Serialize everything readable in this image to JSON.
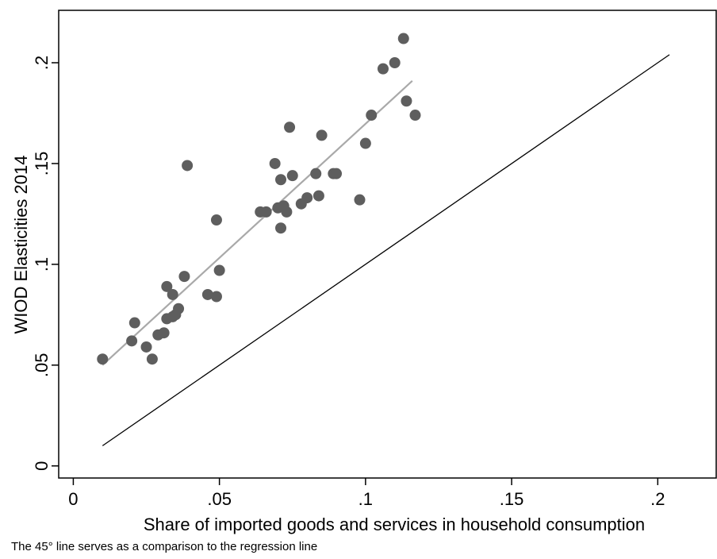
{
  "chart_data": {
    "type": "scatter",
    "xlabel": "Share of imported goods and services in household consumption",
    "ylabel": "WIOD Elasticities 2014",
    "xlim": [
      -0.005,
      0.22
    ],
    "ylim": [
      -0.006,
      0.226
    ],
    "x_ticks": [
      0,
      0.05,
      0.1,
      0.15,
      0.2
    ],
    "x_tick_labels": [
      "0",
      ".05",
      ".1",
      ".15",
      ".2"
    ],
    "y_ticks": [
      0,
      0.05,
      0.1,
      0.15,
      0.2
    ],
    "y_tick_labels": [
      "0",
      ".05",
      ".1",
      ".15",
      ".2"
    ],
    "grid": false,
    "colors": {
      "points": "#5e5e5e",
      "fit_line": "#a9a9a9",
      "ref_line": "#000000"
    },
    "points": [
      [
        0.01,
        0.053
      ],
      [
        0.02,
        0.062
      ],
      [
        0.021,
        0.071
      ],
      [
        0.025,
        0.059
      ],
      [
        0.027,
        0.053
      ],
      [
        0.029,
        0.065
      ],
      [
        0.031,
        0.066
      ],
      [
        0.032,
        0.073
      ],
      [
        0.032,
        0.089
      ],
      [
        0.034,
        0.074
      ],
      [
        0.034,
        0.085
      ],
      [
        0.035,
        0.075
      ],
      [
        0.036,
        0.078
      ],
      [
        0.038,
        0.094
      ],
      [
        0.039,
        0.149
      ],
      [
        0.046,
        0.085
      ],
      [
        0.049,
        0.084
      ],
      [
        0.049,
        0.122
      ],
      [
        0.05,
        0.097
      ],
      [
        0.064,
        0.126
      ],
      [
        0.066,
        0.126
      ],
      [
        0.069,
        0.15
      ],
      [
        0.07,
        0.128
      ],
      [
        0.071,
        0.142
      ],
      [
        0.071,
        0.118
      ],
      [
        0.072,
        0.129
      ],
      [
        0.073,
        0.126
      ],
      [
        0.074,
        0.168
      ],
      [
        0.075,
        0.144
      ],
      [
        0.078,
        0.13
      ],
      [
        0.08,
        0.133
      ],
      [
        0.083,
        0.145
      ],
      [
        0.084,
        0.134
      ],
      [
        0.085,
        0.164
      ],
      [
        0.089,
        0.145
      ],
      [
        0.09,
        0.145
      ],
      [
        0.098,
        0.132
      ],
      [
        0.1,
        0.16
      ],
      [
        0.102,
        0.174
      ],
      [
        0.106,
        0.197
      ],
      [
        0.11,
        0.2
      ],
      [
        0.113,
        0.212
      ],
      [
        0.114,
        0.181
      ],
      [
        0.117,
        0.174
      ]
    ],
    "fit_line": [
      [
        0.01,
        0.05
      ],
      [
        0.116,
        0.191
      ]
    ],
    "reference_line": [
      [
        0.01,
        0.01
      ],
      [
        0.204,
        0.204
      ]
    ]
  },
  "note": "The 45° line serves as a comparison to the regression line"
}
